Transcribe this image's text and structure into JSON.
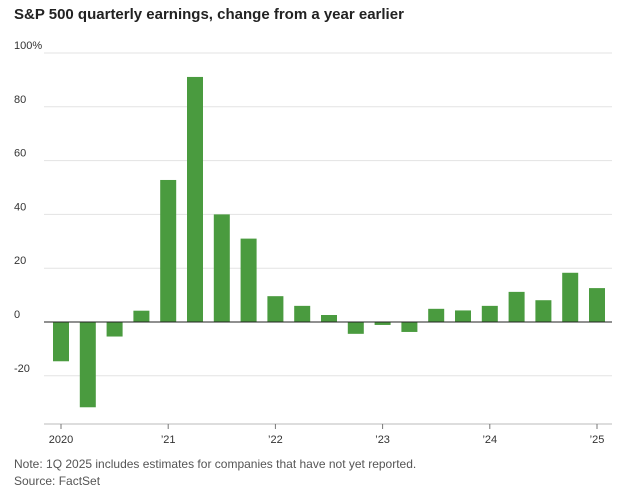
{
  "chart_data": {
    "type": "bar",
    "title": "S&P 500 quarterly earnings, change from a year earlier",
    "xlabel": "",
    "ylabel": "",
    "ylim": [
      -34,
      100
    ],
    "y_ticks": [
      -20,
      0,
      20,
      40,
      60,
      80,
      100
    ],
    "y_tick_labels": [
      "-20",
      "0",
      "20",
      "40",
      "60",
      "80",
      "100%"
    ],
    "x_ticks": [
      {
        "index": 0,
        "label": "2020"
      },
      {
        "index": 4,
        "label": "’21"
      },
      {
        "index": 8,
        "label": "’22"
      },
      {
        "index": 12,
        "label": "’23"
      },
      {
        "index": 16,
        "label": "’24"
      },
      {
        "index": 20,
        "label": "’25"
      }
    ],
    "categories": [
      "1Q20",
      "2Q20",
      "3Q20",
      "4Q20",
      "1Q21",
      "2Q21",
      "3Q21",
      "4Q21",
      "1Q22",
      "2Q22",
      "3Q22",
      "4Q22",
      "1Q23",
      "2Q23",
      "3Q23",
      "4Q23",
      "1Q24",
      "2Q24",
      "3Q24",
      "4Q24",
      "1Q25"
    ],
    "values": [
      -14.6,
      -31.7,
      -5.4,
      4.2,
      52.8,
      91.1,
      40.0,
      31.0,
      9.6,
      6.0,
      2.6,
      -4.4,
      -1.1,
      -3.7,
      4.9,
      4.3,
      6.0,
      11.2,
      8.1,
      18.3,
      12.6
    ],
    "bar_color": "#4a9b3f",
    "grid": true,
    "grid_color": "#e3e3e3"
  },
  "note": "Note: 1Q 2025 includes estimates for companies that have not yet reported.",
  "source": "Source: FactSet"
}
